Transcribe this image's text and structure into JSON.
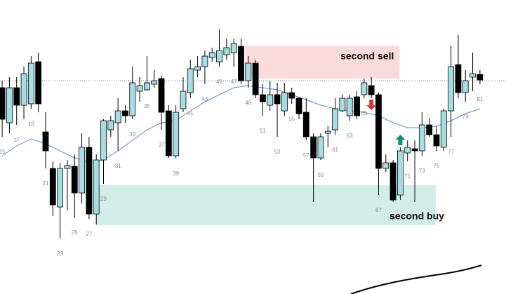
{
  "chart_data": {
    "type": "candlestick",
    "x": [
      15,
      16,
      17,
      18,
      19,
      20,
      21,
      22,
      23,
      24,
      25,
      26,
      27,
      28,
      29,
      30,
      31,
      32,
      33,
      34,
      35,
      36,
      37,
      38,
      39,
      40,
      41,
      42,
      43,
      44,
      45,
      46,
      47,
      48,
      49,
      50,
      51,
      52,
      53,
      54,
      55,
      56,
      57,
      58,
      59,
      60,
      61,
      62,
      63,
      64,
      65,
      66,
      67,
      68,
      69,
      70,
      71,
      72,
      73,
      74,
      75,
      76,
      77,
      78,
      79,
      80,
      81
    ],
    "open": [
      294,
      244,
      294,
      269,
      271,
      331,
      231,
      179,
      124,
      179,
      182,
      144,
      209,
      114,
      191,
      234,
      244,
      261,
      254,
      289,
      291,
      299,
      307,
      261,
      197,
      264,
      287,
      319,
      324,
      337,
      331,
      341,
      344,
      353,
      304,
      329,
      284,
      269,
      284,
      261,
      287,
      279,
      259,
      224,
      194,
      229,
      234,
      261,
      254,
      281,
      284,
      297,
      284,
      179,
      187,
      141,
      201,
      207,
      204,
      241,
      227,
      209,
      261,
      327,
      287,
      309,
      313
    ],
    "high": [
      304,
      309,
      309,
      324,
      339,
      344,
      259,
      189,
      187,
      191,
      199,
      229,
      224,
      199,
      249,
      254,
      279,
      269,
      324,
      309,
      339,
      319,
      311,
      269,
      269,
      309,
      334,
      339,
      347,
      351,
      377,
      364,
      364,
      364,
      339,
      334,
      299,
      304,
      301,
      301,
      294,
      281,
      279,
      229,
      229,
      239,
      279,
      284,
      284,
      289,
      307,
      309,
      287,
      199,
      191,
      209,
      219,
      219,
      259,
      251,
      239,
      264,
      354,
      369,
      319,
      344,
      319
    ],
    "low": [
      224,
      229,
      241,
      249,
      264,
      259,
      179,
      111,
      79,
      119,
      109,
      129,
      107,
      99,
      157,
      224,
      204,
      244,
      249,
      274,
      289,
      294,
      234,
      194,
      193,
      259,
      279,
      309,
      299,
      331,
      324,
      334,
      324,
      299,
      294,
      279,
      254,
      261,
      224,
      254,
      271,
      249,
      219,
      131,
      191,
      209,
      227,
      259,
      247,
      249,
      279,
      279,
      141,
      174,
      131,
      134,
      189,
      131,
      197,
      224,
      204,
      204,
      224,
      279,
      274,
      289,
      299
    ],
    "close": [
      249,
      294,
      269,
      314,
      329,
      271,
      204,
      127,
      179,
      183,
      144,
      209,
      114,
      191,
      247,
      247,
      261,
      254,
      301,
      297,
      301,
      304,
      259,
      197,
      259,
      289,
      321,
      324,
      339,
      344,
      347,
      351,
      357,
      304,
      329,
      284,
      274,
      284,
      271,
      287,
      279,
      257,
      224,
      194,
      224,
      232,
      264,
      279,
      279,
      254,
      301,
      284,
      179,
      187,
      134,
      204,
      209,
      204,
      241,
      227,
      211,
      261,
      324,
      287,
      304,
      314,
      305
    ],
    "up_color": "#a6dde3",
    "down_color": "#000000",
    "ma": {
      "color": "#5b8fd6",
      "x": [
        15,
        17,
        19,
        21,
        23,
        25,
        27,
        29,
        31,
        33,
        35,
        37,
        39,
        41,
        43,
        45,
        47,
        49,
        51,
        53,
        55,
        57,
        59,
        61,
        63,
        65,
        67,
        69,
        71,
        73,
        75,
        77,
        79,
        81
      ],
      "values": [
        197,
        211,
        221,
        214,
        204,
        194,
        187,
        191,
        204,
        219,
        234,
        244,
        247,
        261,
        274,
        284,
        294,
        297,
        294,
        291,
        284,
        277,
        269,
        264,
        261,
        259,
        254,
        244,
        237,
        237,
        239,
        247,
        257,
        264
      ]
    },
    "level": 304,
    "zones": [
      {
        "label": "second sell",
        "color": "#fbdadd",
        "x0": 48.6,
        "x1": 69.9,
        "y0": 307,
        "y1": 354
      },
      {
        "label": "second buy",
        "color": "#d1ede8",
        "x0": 28,
        "x1": 74.9,
        "y0": 98,
        "y1": 155
      }
    ],
    "arrows": [
      {
        "direction": "down",
        "color": "#d8343f",
        "x": 66,
        "tip": 262
      },
      {
        "direction": "up",
        "color": "#11907a",
        "x": 70,
        "tip": 227
      }
    ],
    "xlim": [
      14.7,
      84.6
    ],
    "ylim": [
      0,
      419
    ]
  }
}
